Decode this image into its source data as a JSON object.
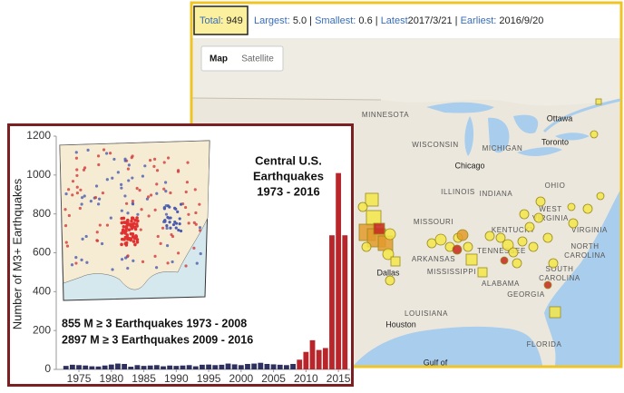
{
  "stats": {
    "total_label": "Total:",
    "total": "949",
    "largest_label": "Largest:",
    "largest": "5.0",
    "separator": "|",
    "smallest_label": "Smallest:",
    "smallest": "0.6",
    "latest_label": "Latest",
    "latest": "2017/3/21",
    "earliest_label": "Earliest:",
    "earliest": "2016/9/20"
  },
  "map": {
    "buttons": [
      "Map",
      "Satellite"
    ],
    "labels": [
      "MINNESOTA",
      "Ottawa",
      "WISCONSIN",
      "MICHIGAN",
      "Toronto",
      "Chicago",
      "ILLINOIS",
      "INDIANA",
      "OHIO",
      "WEST",
      "VIRGINIA",
      "MISSOURI",
      "KENTUCKY",
      "VIRGINIA",
      "TENNESSEE",
      "NORTH",
      "CAROLINA",
      "ARKANSAS",
      "Dallas",
      "MISSISSIPPI",
      "ALABAMA",
      "SOUTH",
      "CAROLINA",
      "GEORGIA",
      "LOUISIANA",
      "Houston",
      "FLORIDA",
      "Gulf of"
    ]
  },
  "chart_data": {
    "type": "bar",
    "title_lines": [
      "Central U.S.",
      "Earthquakes",
      "1973 - 2016"
    ],
    "notes": [
      "855 M ≥ 3 Earthquakes 1973 - 2008",
      "2897 M ≥ 3 Earthquakes 2009 - 2016"
    ],
    "ylabel": "Number of M3+ Earthquakes",
    "x": [
      1973,
      1974,
      1975,
      1976,
      1977,
      1978,
      1979,
      1980,
      1981,
      1982,
      1983,
      1984,
      1985,
      1986,
      1987,
      1988,
      1989,
      1990,
      1991,
      1992,
      1993,
      1994,
      1995,
      1996,
      1997,
      1998,
      1999,
      2000,
      2001,
      2002,
      2003,
      2004,
      2005,
      2006,
      2007,
      2008,
      2009,
      2010,
      2011,
      2012,
      2013,
      2014,
      2015,
      2016
    ],
    "values": [
      18,
      24,
      22,
      20,
      16,
      15,
      20,
      25,
      30,
      28,
      14,
      22,
      18,
      20,
      22,
      16,
      20,
      18,
      20,
      22,
      16,
      24,
      25,
      22,
      24,
      30,
      26,
      22,
      28,
      30,
      34,
      28,
      26,
      24,
      22,
      28,
      50,
      90,
      150,
      100,
      110,
      690,
      1010,
      690
    ],
    "colors": [
      "#2e3160",
      "#2e3160",
      "#2e3160",
      "#2e3160",
      "#2e3160",
      "#2e3160",
      "#2e3160",
      "#2e3160",
      "#2e3160",
      "#2e3160",
      "#2e3160",
      "#2e3160",
      "#2e3160",
      "#2e3160",
      "#2e3160",
      "#2e3160",
      "#2e3160",
      "#2e3160",
      "#2e3160",
      "#2e3160",
      "#2e3160",
      "#2e3160",
      "#2e3160",
      "#2e3160",
      "#2e3160",
      "#2e3160",
      "#2e3160",
      "#2e3160",
      "#2e3160",
      "#2e3160",
      "#2e3160",
      "#2e3160",
      "#2e3160",
      "#2e3160",
      "#2e3160",
      "#2e3160",
      "#b8262b",
      "#b8262b",
      "#b8262b",
      "#b8262b",
      "#b8262b",
      "#b8262b",
      "#b8262b",
      "#b8262b"
    ],
    "xlim": [
      1971.5,
      2016.8
    ],
    "xticks": [
      1975,
      1980,
      1985,
      1990,
      1995,
      2000,
      2005,
      2010,
      2015
    ],
    "ylim": [
      0,
      1200
    ],
    "yticks": [
      0,
      200,
      400,
      600,
      800,
      1000,
      1200
    ]
  }
}
